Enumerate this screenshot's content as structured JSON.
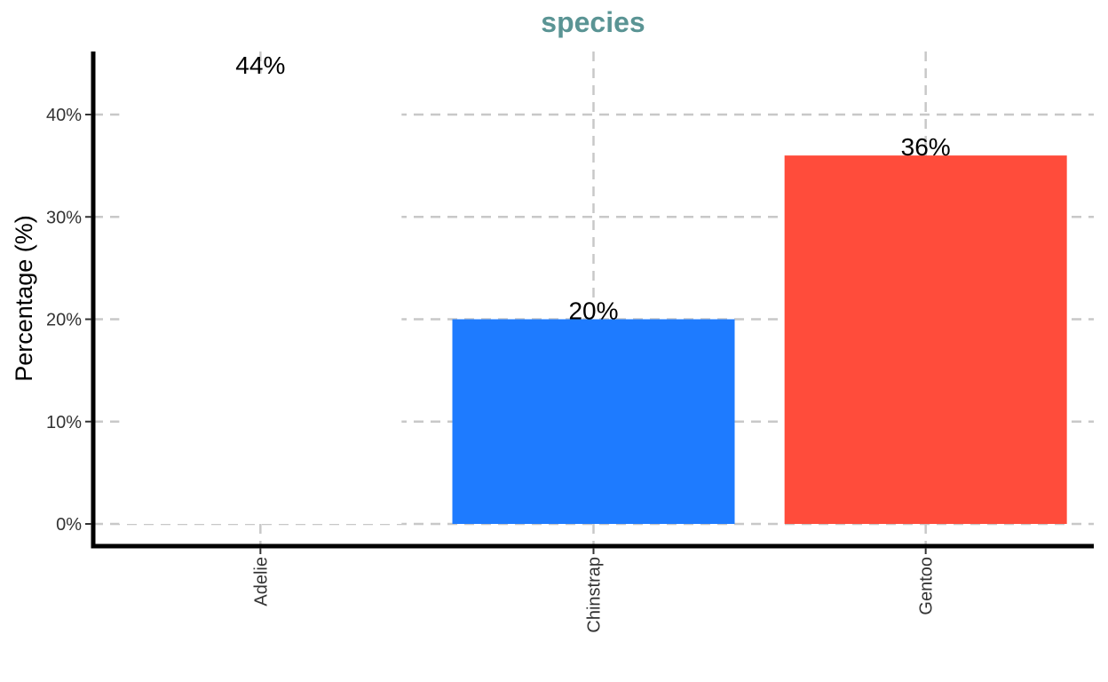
{
  "chart_data": {
    "type": "bar",
    "title": "species",
    "ylabel": "Percentage (%)",
    "xlabel": "",
    "categories": [
      "Adelie",
      "Chinstrap",
      "Gentoo"
    ],
    "values": [
      44,
      20,
      36
    ],
    "data_labels": [
      "44%",
      "20%",
      "36%"
    ],
    "ylim": [
      0,
      46
    ],
    "yticks": [
      0,
      10,
      20,
      30,
      40
    ],
    "ytick_labels": [
      "0%",
      "10%",
      "20%",
      "30%",
      "40%"
    ],
    "grid": true,
    "legend": "none",
    "colors": {
      "title": "#5a9494",
      "bars": [
        "#ffffff",
        "#1e7bff",
        "#ff4c3b"
      ]
    }
  }
}
